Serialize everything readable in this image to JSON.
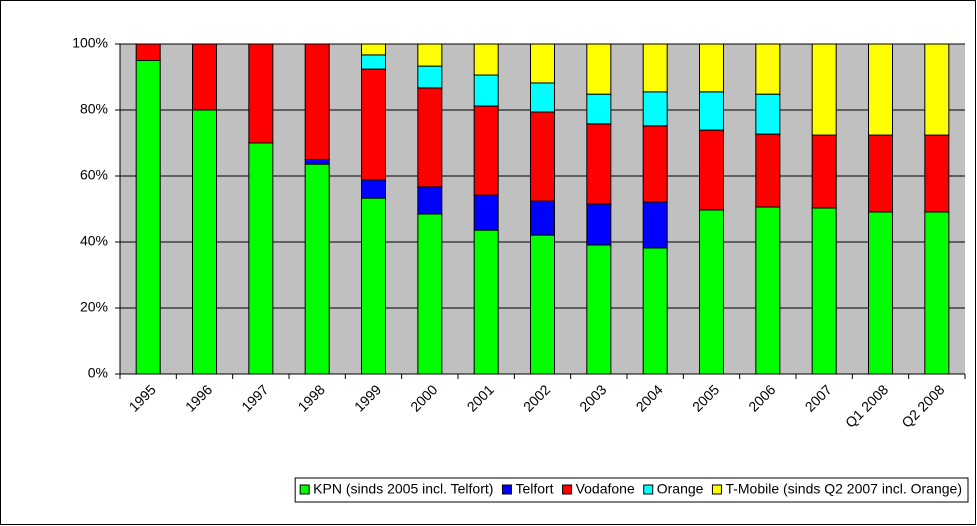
{
  "chart_data": {
    "type": "stacked_bar",
    "categories": [
      "1995",
      "1996",
      "1997",
      "1998",
      "1999",
      "2000",
      "2001",
      "2002",
      "2003",
      "2004",
      "2005",
      "2006",
      "2007",
      "Q1 2008",
      "Q2 2008"
    ],
    "series": [
      {
        "name": "KPN (sinds 2005 incl. Telfort)",
        "color": "#00ff00",
        "values": [
          95,
          80,
          70,
          63.6,
          53.3,
          48.5,
          43.6,
          42.1,
          39.1,
          38.2,
          49.7,
          50.6,
          50.3,
          49.1,
          49.1
        ]
      },
      {
        "name": "Telfort",
        "color": "#0000ff",
        "values": [
          0,
          0,
          0,
          1.4,
          5.5,
          8.2,
          10.6,
          10.3,
          12.4,
          13.9,
          0,
          0,
          0,
          0,
          0
        ]
      },
      {
        "name": "Vodafone",
        "color": "#ff0000",
        "values": [
          5,
          20,
          30,
          35,
          33.6,
          30,
          27,
          27,
          24.3,
          23.1,
          24.2,
          22.1,
          22.1,
          23.3,
          23.3
        ]
      },
      {
        "name": "Orange",
        "color": "#00ffff",
        "values": [
          0,
          0,
          0,
          0,
          4.3,
          6.6,
          9.4,
          8.8,
          9,
          10.3,
          11.6,
          12.1,
          0,
          0,
          0
        ]
      },
      {
        "name": "T-Mobile (sinds Q2 2007 incl. Orange)",
        "color": "#ffff00",
        "values": [
          0,
          0,
          0,
          0,
          3.3,
          6.7,
          9.4,
          11.8,
          15.2,
          14.5,
          14.5,
          15.2,
          27.6,
          27.6,
          27.6
        ]
      }
    ],
    "ylim": [
      0,
      100
    ],
    "yticks": [
      {
        "value": 0,
        "label": "0%"
      },
      {
        "value": 20,
        "label": "20%"
      },
      {
        "value": 40,
        "label": "40%"
      },
      {
        "value": 60,
        "label": "60%"
      },
      {
        "value": 80,
        "label": "80%"
      },
      {
        "value": 100,
        "label": "100%"
      }
    ],
    "grid": true,
    "plot_background": "#c0c0c0"
  }
}
